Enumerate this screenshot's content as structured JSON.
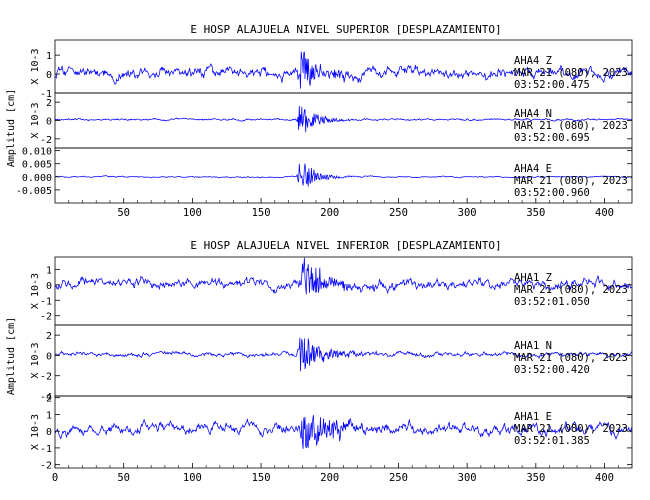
{
  "chart_data": [
    {
      "type": "line",
      "title": "E HOSP ALAJUELA NIVEL SUPERIOR [DESPLAZAMIENTO]",
      "ylabel": "Amplitud [cm]",
      "xlim": [
        0,
        420
      ],
      "xticks": [
        50,
        100,
        150,
        200,
        250,
        300,
        350,
        400
      ],
      "grid": false,
      "line_color": "#0000ff",
      "panels": [
        {
          "station": "AHA4",
          "component": "Z",
          "date": "MAR 21 (080), 2023",
          "time": "03:52:00.475",
          "scale_label": "X 10-3",
          "ylim": [
            -1,
            1.8
          ],
          "ytick_labels": [
            "1",
            "0",
            "-1"
          ],
          "ytick_values": [
            1,
            0,
            -1
          ],
          "series": [
            {
              "x_start": 0,
              "x_end": 420,
              "noise_amp": 0.45,
              "offset": 0.05,
              "burst_at": 178,
              "burst_amp": 1.3,
              "burst_decay": 15,
              "seed": 11
            }
          ]
        },
        {
          "station": "AHA4",
          "component": "N",
          "date": "MAR 21 (080), 2023",
          "time": "03:52:00.695",
          "scale_label": "X 10-3",
          "ylim": [
            -3,
            3
          ],
          "ytick_labels": [
            "2",
            "0",
            "-2"
          ],
          "ytick_values": [
            2,
            0,
            -2
          ],
          "series": [
            {
              "x_start": 0,
              "x_end": 420,
              "noise_amp": 0.18,
              "offset": 0.1,
              "burst_at": 178,
              "burst_amp": 2.6,
              "burst_decay": 10,
              "seed": 23
            }
          ]
        },
        {
          "station": "AHA4",
          "component": "E",
          "date": "MAR 21 (080), 2023",
          "time": "03:52:00.960",
          "scale_label": "",
          "ylim": [
            -0.01,
            0.011
          ],
          "ytick_labels": [
            "0.010",
            "0.005",
            "0.000",
            "-0.005"
          ],
          "ytick_values": [
            0.01,
            0.005,
            0.0,
            -0.005
          ],
          "series": [
            {
              "x_start": 0,
              "x_end": 420,
              "noise_amp": 0.0004,
              "offset": 0.0,
              "burst_at": 178,
              "burst_amp": 0.008,
              "burst_decay": 10,
              "seed": 37
            }
          ]
        }
      ]
    },
    {
      "type": "line",
      "title": "E HOSP ALAJUELA NIVEL INFERIOR [DESPLAZAMIENTO]",
      "ylabel": "Amplitud [cm]",
      "xlim": [
        0,
        420
      ],
      "xticks": [
        0,
        50,
        100,
        150,
        200,
        250,
        300,
        350,
        400
      ],
      "grid": false,
      "line_color": "#0000ff",
      "panels": [
        {
          "station": "AHA1",
          "component": "Z",
          "date": "MAR 21 (080), 2023",
          "time": "03:52:01.050",
          "scale_label": "X 10-3",
          "ylim": [
            -2.6,
            1.8
          ],
          "ytick_labels": [
            "1",
            "0",
            "-1",
            "-2"
          ],
          "ytick_values": [
            1,
            0,
            -1,
            -2
          ],
          "series": [
            {
              "x_start": 0,
              "x_end": 420,
              "noise_amp": 0.5,
              "offset": 0.1,
              "burst_at": 180,
              "burst_amp": 1.6,
              "burst_decay": 18,
              "seed": 51,
              "wander": 0.5
            }
          ]
        },
        {
          "station": "AHA1",
          "component": "N",
          "date": "MAR 21 (080), 2023",
          "time": "03:52:00.420",
          "scale_label": "X 10-3",
          "ylim": [
            -4,
            3
          ],
          "ytick_labels": [
            "2",
            "0",
            "-2",
            "-4"
          ],
          "ytick_values": [
            2,
            0,
            -2,
            -4
          ],
          "series": [
            {
              "x_start": 0,
              "x_end": 420,
              "noise_amp": 0.35,
              "offset": 0.1,
              "burst_at": 178,
              "burst_amp": 2.5,
              "burst_decay": 14,
              "seed": 67
            }
          ]
        },
        {
          "station": "AHA1",
          "component": "E",
          "date": "MAR 21 (080), 2023",
          "time": "03:52:01.385",
          "scale_label": "X 10-3",
          "ylim": [
            -2.2,
            2.1
          ],
          "ytick_labels": [
            "2",
            "1",
            "0",
            "-1",
            "-2"
          ],
          "ytick_values": [
            2,
            1,
            0,
            -1,
            -2
          ],
          "series": [
            {
              "x_start": 0,
              "x_end": 420,
              "noise_amp": 0.5,
              "offset": 0.1,
              "burst_at": 180,
              "burst_amp": 1.5,
              "burst_decay": 20,
              "seed": 79
            }
          ]
        }
      ]
    }
  ]
}
